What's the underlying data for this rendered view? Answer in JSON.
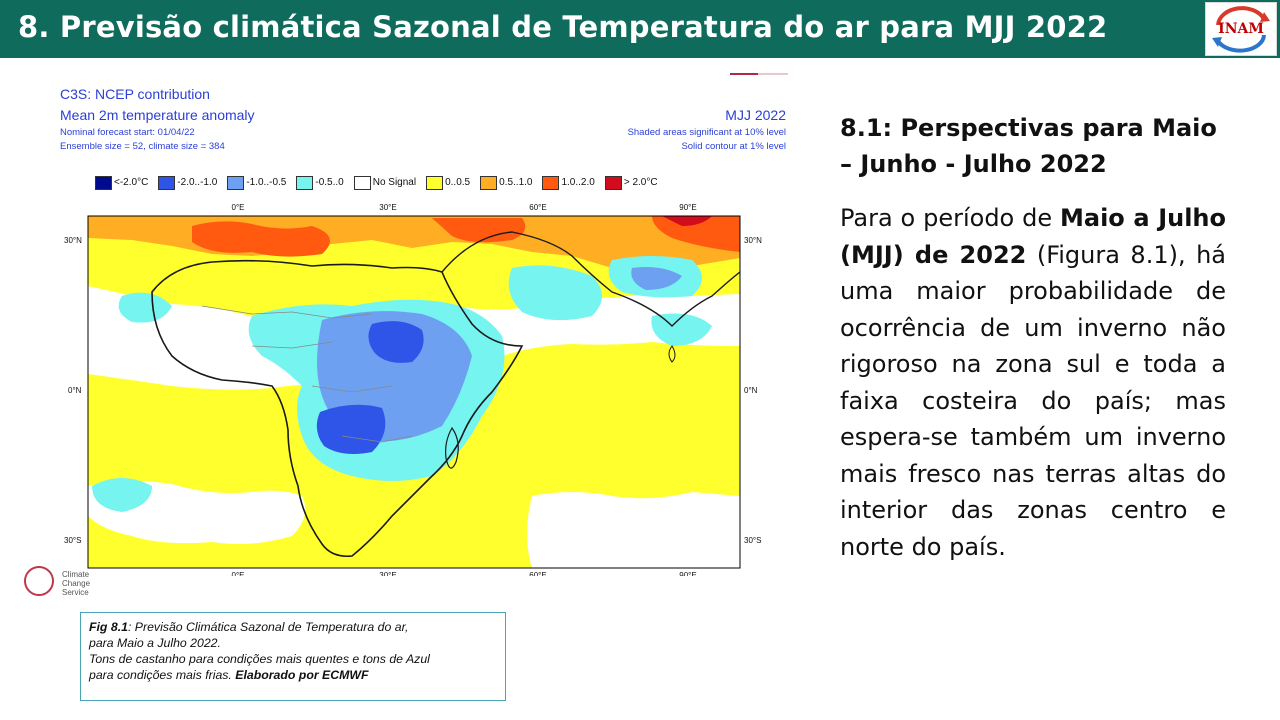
{
  "header": {
    "title": "8. Previsão climática Sazonal de Temperatura do ar para MJJ 2022",
    "logo_text": "INAM"
  },
  "figure": {
    "source_line": "C3S: NCEP contribution",
    "variable_line": "Mean 2m temperature anomaly",
    "forecast_start": "Nominal forecast start: 01/04/22",
    "ensemble_size": "Ensemble size = 52, climate size = 384",
    "period": "MJJ 2022",
    "significance_shaded": "Shaded areas significant at 10% level",
    "significance_contour": "Solid contour at 1% level",
    "legend": [
      {
        "label": "<-2.0°C",
        "color": "#000a8f"
      },
      {
        "label": "-2.0..-1.0",
        "color": "#2f54e8"
      },
      {
        "label": "-1.0..-0.5",
        "color": "#6da0f0"
      },
      {
        "label": "-0.5..0",
        "color": "#76f4f0"
      },
      {
        "label": "No Signal",
        "color": "#ffffff"
      },
      {
        "label": "0..0.5",
        "color": "#ffff2e"
      },
      {
        "label": "0.5..1.0",
        "color": "#ffad22"
      },
      {
        "label": "1.0..2.0",
        "color": "#ff5a10"
      },
      {
        "label": "> 2.0°C",
        "color": "#d20c1c"
      }
    ],
    "lon_ticks": [
      "0°E",
      "30°E",
      "60°E",
      "90°E"
    ],
    "lat_ticks_left": [
      "30°N",
      "0°N",
      "30°S"
    ],
    "lat_ticks_right": [
      "30°N",
      "0°N",
      "30°S"
    ],
    "climate_logo_text": "Climate Change Service"
  },
  "caption": {
    "fig_label": "Fig 8.1",
    "line1": ": Previsão Climática Sazonal de Temperatura do ar,",
    "line2": "para Maio a Julho 2022.",
    "line3": "Tons de castanho para condições mais quentes e tons de Azul",
    "line4_plain": "para condições mais frias. ",
    "line4_bold": "Elaborado  por ECMWF"
  },
  "right_panel": {
    "heading": "8.1: Perspectivas para  Maio – Junho - Julho 2022",
    "body_1": "Para o período de ",
    "body_bold_1": "Maio a Julho (MJJ) de 2022",
    "body_2": " (Figura 8.1), há uma maior probabilidade de ocorrência de um inverno não rigoroso na zona sul e toda a faixa costeira do país; mas espera-se também um inverno mais fresco nas terras altas do interior das zonas centro e norte do país."
  }
}
